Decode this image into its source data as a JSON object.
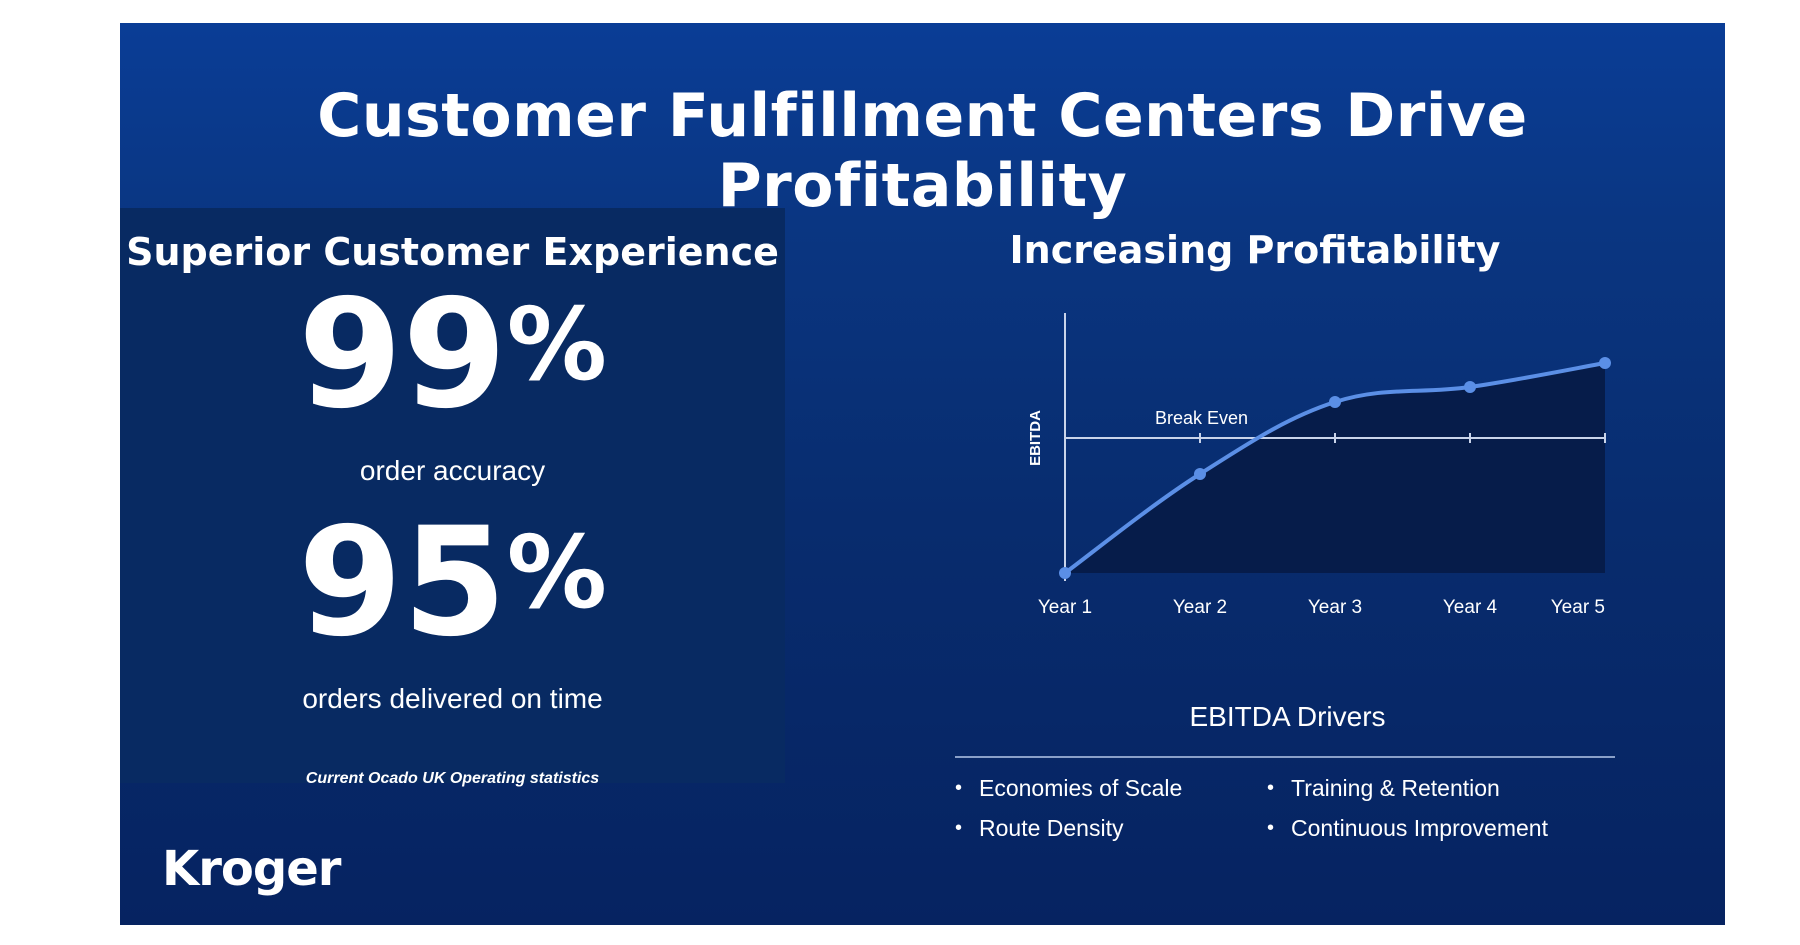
{
  "slide": {
    "title": "Customer Fulfillment Centers Drive Profitability",
    "logo_text": "Kroger"
  },
  "left_panel": {
    "heading": "Superior Customer Experience",
    "stats": [
      {
        "value": "99",
        "unit": "%",
        "label": "order accuracy"
      },
      {
        "value": "95",
        "unit": "%",
        "label": "orders delivered on time"
      }
    ],
    "footnote": "Current Ocado UK Operating statistics"
  },
  "chart_data": {
    "type": "area",
    "title": "Increasing Profitability",
    "xlabel": "",
    "ylabel": "EBITDA",
    "categories": [
      "Year 1",
      "Year 2",
      "Year 3",
      "Year 4",
      "Year 5"
    ],
    "series": [
      {
        "name": "EBITDA",
        "values": [
          -45,
          -12,
          12,
          17,
          25
        ]
      }
    ],
    "reference_line": {
      "label": "Break Even",
      "value": 0
    },
    "ylim": [
      -45,
      35
    ],
    "colors": {
      "line": "#5b8fe6",
      "area": "#061c4a",
      "axis": "#c9d4ea",
      "text": "#ffffff"
    }
  },
  "drivers": {
    "title": "EBITDA Drivers",
    "left": [
      "Economies of Scale",
      "Route Density"
    ],
    "right": [
      "Training & Retention",
      "Continuous Improvement"
    ]
  }
}
